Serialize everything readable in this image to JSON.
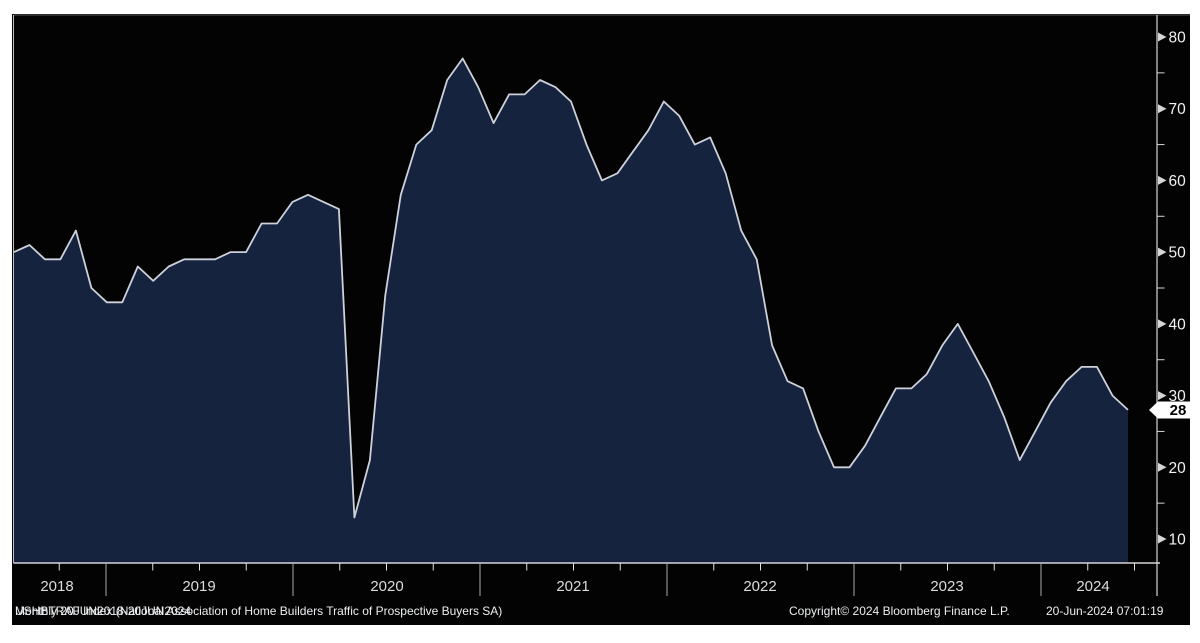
{
  "chart_data": {
    "type": "area",
    "title": "USHBTRAF Index (National Association of Home Builders Traffic of Prospective Buyers SA)",
    "periodicity_label": "Monthly 20JUN2018-20JUN2024",
    "copyright": "Copyright© 2024 Bloomberg Finance L.P.",
    "timestamp": "20-Jun-2024 07:01:19",
    "frequency": "monthly",
    "x_start": "Jun 2018",
    "x_end": "Jun 2024",
    "x_year_labels": [
      "2018",
      "2019",
      "2020",
      "2021",
      "2022",
      "2023",
      "2024"
    ],
    "y_ticks": [
      10,
      20,
      30,
      40,
      50,
      60,
      70,
      80
    ],
    "y_minor_ticks": [
      15,
      25,
      35,
      45,
      55,
      65,
      75
    ],
    "ylim": [
      6,
      83
    ],
    "grid": "off",
    "legend_position": "none",
    "last_value": "28",
    "series": [
      {
        "name": "USHBTRAF Index",
        "values": [
          50,
          51,
          49,
          49,
          53,
          45,
          43,
          43,
          48,
          46,
          48,
          49,
          49,
          49,
          50,
          50,
          54,
          54,
          57,
          58,
          57,
          56,
          13,
          21,
          44,
          58,
          65,
          67,
          74,
          77,
          73,
          68,
          72,
          72,
          74,
          73,
          71,
          65,
          60,
          61,
          64,
          67,
          71,
          69,
          65,
          66,
          61,
          53,
          49,
          37,
          32,
          31,
          25,
          20,
          20,
          23,
          27,
          31,
          31,
          33,
          37,
          40,
          36,
          32,
          27,
          21,
          25,
          29,
          32,
          34,
          34,
          30,
          28
        ]
      }
    ],
    "colors": {
      "panel_bg": "#030303",
      "area_fill": "#16233e",
      "line": "#ccd1da",
      "axis": "#d6d6d6",
      "separator": "#a8a8a8",
      "quarter_tick": "#e0e0e0",
      "tick_text": "#f2f2f2",
      "year_text": "#dcdcdc",
      "footer_text": "#eceef0",
      "badge_bg": "#ffffff",
      "badge_text": "#000000"
    }
  }
}
